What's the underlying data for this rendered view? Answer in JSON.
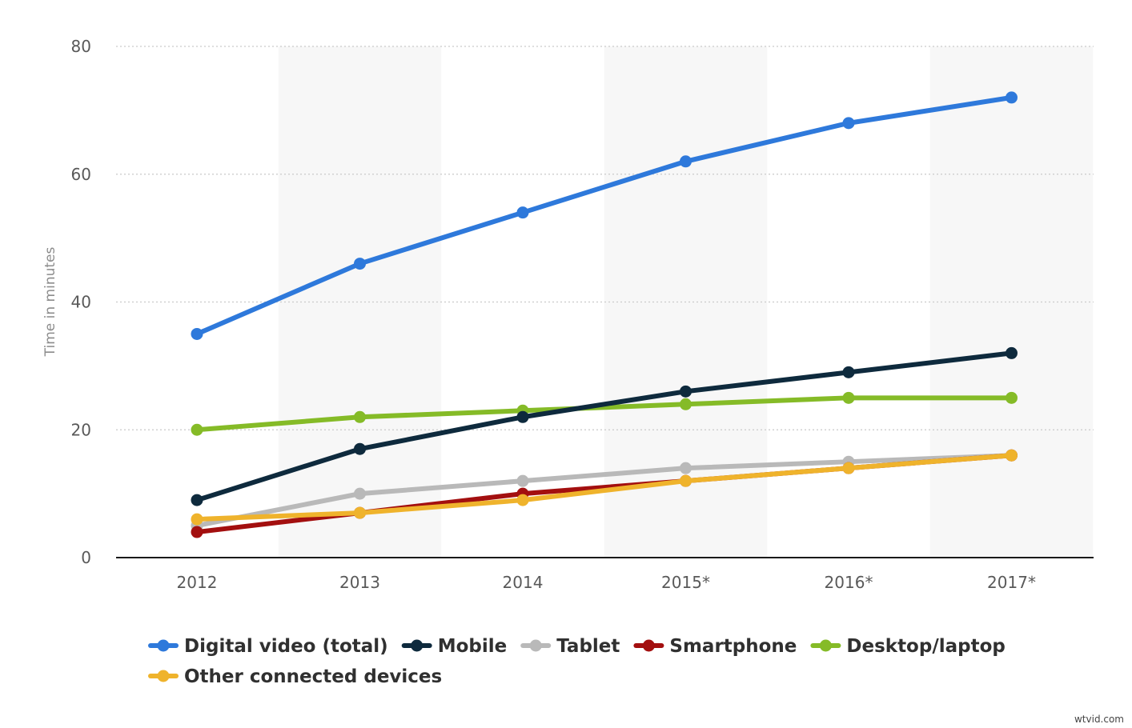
{
  "chart_data": {
    "type": "line",
    "categories": [
      "2012",
      "2013",
      "2014",
      "2015*",
      "2016*",
      "2017*"
    ],
    "ylabel": "Time in minutes",
    "ylim": [
      0,
      80
    ],
    "yticks": [
      "0",
      "20",
      "40",
      "60",
      "80"
    ],
    "grid": "horizontal dotted",
    "legend_position": "bottom",
    "series": [
      {
        "name": "Digital video (total)",
        "color": "#2e79db",
        "values": [
          35,
          46,
          54,
          62,
          68,
          72
        ]
      },
      {
        "name": "Mobile",
        "color": "#0e2a3d",
        "values": [
          9,
          17,
          22,
          26,
          29,
          32
        ]
      },
      {
        "name": "Tablet",
        "color": "#b9b9b9",
        "values": [
          5,
          10,
          12,
          14,
          15,
          16
        ]
      },
      {
        "name": "Smartphone",
        "color": "#a30f0f",
        "values": [
          4,
          7,
          10,
          12,
          14,
          16
        ]
      },
      {
        "name": "Desktop/laptop",
        "color": "#85bb27",
        "values": [
          20,
          22,
          23,
          24,
          25,
          25
        ]
      },
      {
        "name": "Other connected devices",
        "color": "#efb32c",
        "values": [
          6,
          7,
          9,
          12,
          14,
          16
        ]
      }
    ]
  },
  "watermark": "wtvid.com"
}
